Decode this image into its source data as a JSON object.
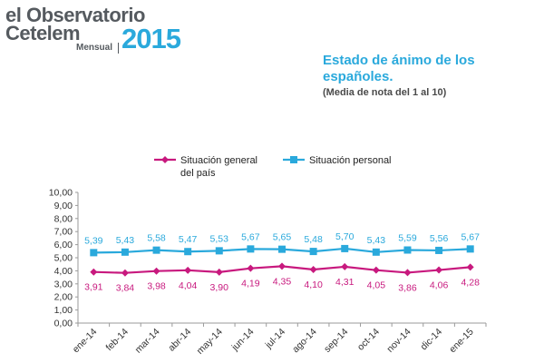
{
  "logo": {
    "line1": "el Observatorio",
    "line2": "Cetelem",
    "sub": "Mensual",
    "year": "2015"
  },
  "header": {
    "title": "Estado de ánimo de los españoles.",
    "subtitle": "(Media de nota del 1 al 10)"
  },
  "colors": {
    "series1": "#c8197e",
    "series2": "#2aa9dc"
  },
  "chart_data": {
    "type": "line",
    "title": "Estado de ánimo de los españoles.",
    "subtitle": "(Media de nota del 1 al 10)",
    "xlabel": "",
    "ylabel": "",
    "ylim": [
      0,
      10
    ],
    "ytick_step": 1,
    "ytick_labels": [
      "0,00",
      "1,00",
      "2,00",
      "3,00",
      "4,00",
      "5,00",
      "6,00",
      "7,00",
      "8,00",
      "9,00",
      "10,00"
    ],
    "categories": [
      "ene-14",
      "feb-14",
      "mar-14",
      "abr-14",
      "may-14",
      "jun-14",
      "jul-14",
      "ago-14",
      "sep-14",
      "oct-14",
      "nov-14",
      "dic-14",
      "ene-15"
    ],
    "series": [
      {
        "name_line1": "Situación general",
        "name_line2": "del país",
        "marker": "diamond",
        "values": [
          3.91,
          3.84,
          3.98,
          4.04,
          3.9,
          4.19,
          4.35,
          4.1,
          4.31,
          4.05,
          3.86,
          4.06,
          4.28
        ],
        "labels": [
          "3,91",
          "3,84",
          "3,98",
          "4,04",
          "3,90",
          "4,19",
          "4,35",
          "4,10",
          "4,31",
          "4,05",
          "3,86",
          "4,06",
          "4,28"
        ]
      },
      {
        "name_line1": "Situación personal",
        "name_line2": "",
        "marker": "square",
        "values": [
          5.39,
          5.43,
          5.58,
          5.47,
          5.53,
          5.67,
          5.65,
          5.48,
          5.7,
          5.43,
          5.59,
          5.56,
          5.67
        ],
        "labels": [
          "5,39",
          "5,43",
          "5,58",
          "5,47",
          "5,53",
          "5,67",
          "5,65",
          "5,48",
          "5,70",
          "5,43",
          "5,59",
          "5,56",
          "5,67"
        ]
      }
    ],
    "legend": "top"
  }
}
